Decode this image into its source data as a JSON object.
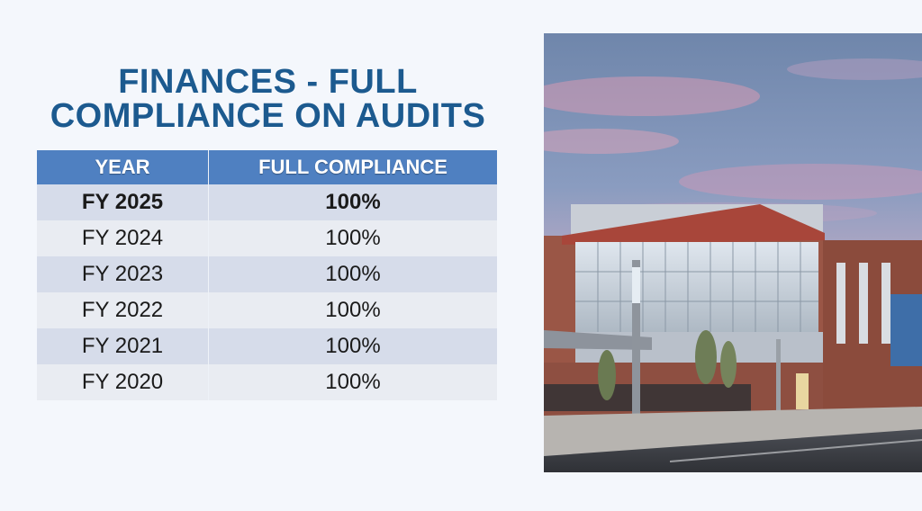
{
  "title": {
    "line1": "FINANCES - FULL",
    "line2": "COMPLIANCE ON AUDITS"
  },
  "table": {
    "headers": [
      "YEAR",
      "FULL COMPLIANCE"
    ],
    "rows": [
      {
        "year": "FY 2025",
        "compliance": "100%"
      },
      {
        "year": "FY 2024",
        "compliance": "100%"
      },
      {
        "year": "FY 2023",
        "compliance": "100%"
      },
      {
        "year": "FY 2022",
        "compliance": "100%"
      },
      {
        "year": "FY 2021",
        "compliance": "100%"
      },
      {
        "year": "FY 2020",
        "compliance": "100%"
      }
    ]
  }
}
